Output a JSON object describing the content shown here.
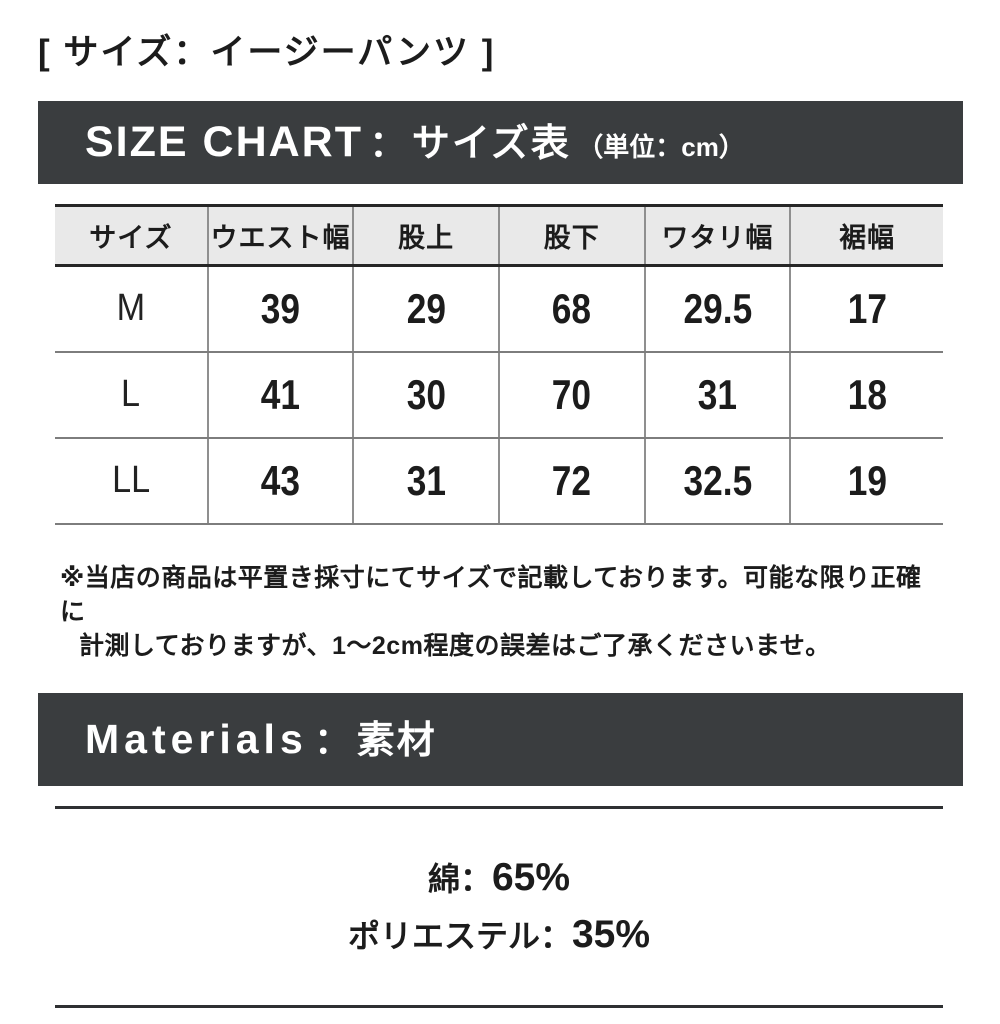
{
  "page": {
    "title": "[ サイズ：イージーパンツ ]"
  },
  "size_chart": {
    "banner": {
      "en": "SIZE CHART",
      "separator": "：",
      "ja": "サイズ表",
      "unit_note": "（単位：cm）"
    },
    "table": {
      "columns": [
        "サイズ",
        "ウエスト幅",
        "股上",
        "股下",
        "ワタリ幅",
        "裾幅"
      ],
      "rows": [
        {
          "size": "M",
          "values": [
            "39",
            "29",
            "68",
            "29.5",
            "17"
          ]
        },
        {
          "size": "L",
          "values": [
            "41",
            "30",
            "70",
            "31",
            "18"
          ]
        },
        {
          "size": "LL",
          "values": [
            "43",
            "31",
            "72",
            "32.5",
            "19"
          ]
        }
      ],
      "unit": "cm"
    },
    "note_line1": "※当店の商品は平置き採寸にてサイズで記載しております。可能な限り正確に",
    "note_line2": "計測しておりますが、1〜2cm程度の誤差はご了承くださいませ。"
  },
  "materials": {
    "banner": {
      "en": "Materials",
      "separator": "：",
      "ja": "素材"
    },
    "items": [
      {
        "label": "綿",
        "separator": "：",
        "value": "65%"
      },
      {
        "label": "ポリエステル",
        "separator": "：",
        "value": "35%"
      }
    ]
  },
  "colors": {
    "banner_bg": "#3a3d3f",
    "banner_text": "#ffffff",
    "header_row_bg": "#e9e9e9",
    "text": "#1c1c1c",
    "border_dark": "#262626",
    "border_gray": "#7d7d7d"
  }
}
